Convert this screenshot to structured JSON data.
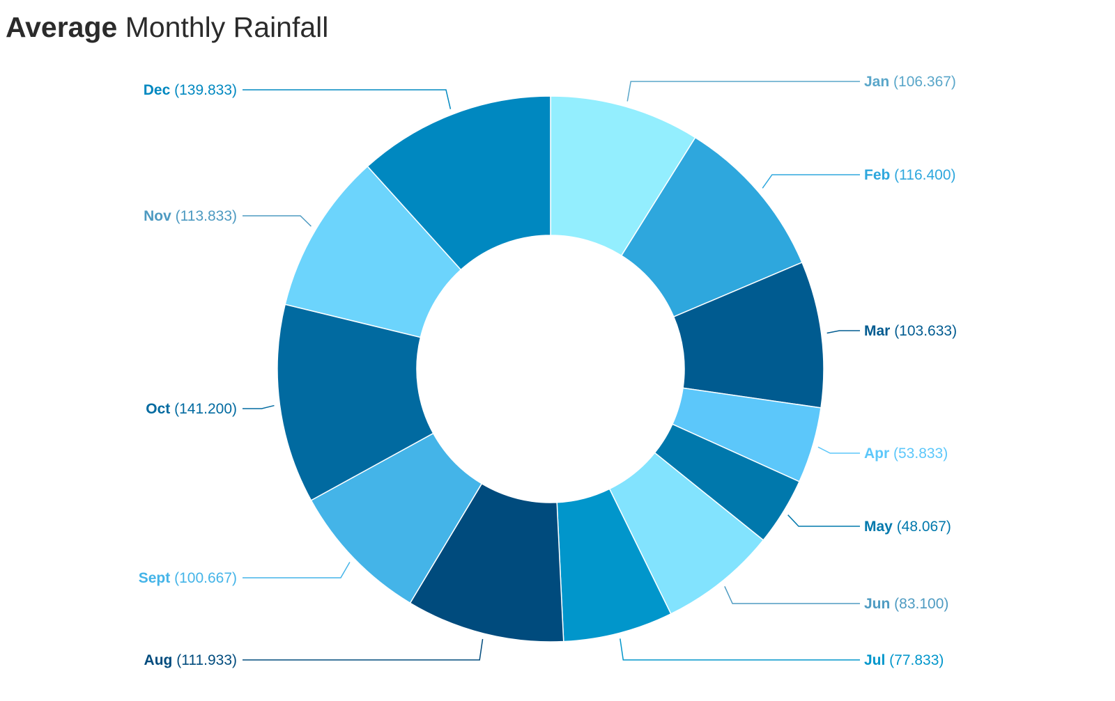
{
  "chart_data": {
    "type": "pie",
    "variant": "donut",
    "title_bold": "Average",
    "title_rest": "Monthly Rainfall",
    "slices": [
      {
        "label": "Jan",
        "value": 106.367,
        "value_text": "106.367",
        "color": "#93eefe",
        "label_color": "#59a6c9"
      },
      {
        "label": "Feb",
        "value": 116.4,
        "value_text": "116.400",
        "color": "#2ea7dd",
        "label_color": "#2ea7dd"
      },
      {
        "label": "Mar",
        "value": 103.633,
        "value_text": "103.633",
        "color": "#005b90",
        "label_color": "#005b90"
      },
      {
        "label": "Apr",
        "value": 53.833,
        "value_text": "53.833",
        "color": "#5cc7fa",
        "label_color": "#5cc7fa"
      },
      {
        "label": "May",
        "value": 48.067,
        "value_text": "48.067",
        "color": "#0078ac",
        "label_color": "#0078ac"
      },
      {
        "label": "Jun",
        "value": 83.1,
        "value_text": "83.100",
        "color": "#82e3fe",
        "label_color": "#4e9bc2"
      },
      {
        "label": "Jul",
        "value": 77.833,
        "value_text": "77.833",
        "color": "#0196cb",
        "label_color": "#0196cb"
      },
      {
        "label": "Aug",
        "value": 111.933,
        "value_text": "111.933",
        "color": "#004b7d",
        "label_color": "#004b7d"
      },
      {
        "label": "Sept",
        "value": 100.667,
        "value_text": "100.667",
        "color": "#44b4e8",
        "label_color": "#44b4e8"
      },
      {
        "label": "Oct",
        "value": 141.2,
        "value_text": "141.200",
        "color": "#016aa0",
        "label_color": "#016aa0"
      },
      {
        "label": "Nov",
        "value": 113.833,
        "value_text": "113.833",
        "color": "#6cd4fc",
        "label_color": "#4d9ac1"
      },
      {
        "label": "Dec",
        "value": 139.833,
        "value_text": "139.833",
        "color": "#0088c0",
        "label_color": "#0088c0"
      }
    ],
    "legend": "none"
  }
}
